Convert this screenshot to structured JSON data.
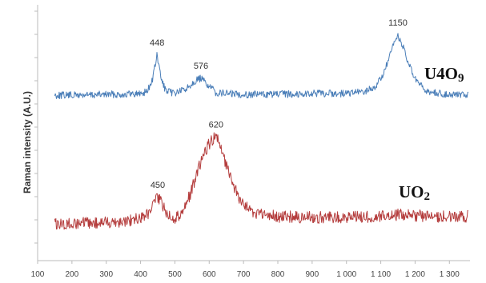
{
  "chart_data": {
    "type": "line",
    "ylabel": "Raman intensity (A.U.)",
    "xlabel": "",
    "xlim": [
      100,
      1360
    ],
    "xticks": [
      100,
      200,
      300,
      400,
      500,
      600,
      700,
      800,
      900,
      1000,
      1100,
      1200,
      1300
    ],
    "xtick_labels": [
      "100",
      "200",
      "300",
      "400",
      "500",
      "600",
      "700",
      "800",
      "900",
      "1 000",
      "1 100",
      "1 200",
      "1 300"
    ],
    "grid": false,
    "legend": "none",
    "series": [
      {
        "name": "U4O9",
        "color": "#4a7eb8",
        "x": [
          150,
          200,
          250,
          300,
          350,
          400,
          420,
          435,
          448,
          460,
          475,
          500,
          530,
          555,
          576,
          595,
          620,
          700,
          800,
          900,
          1000,
          1050,
          1080,
          1100,
          1120,
          1135,
          1150,
          1165,
          1180,
          1200,
          1230,
          1270,
          1300,
          1355
        ],
        "y": [
          0.05,
          0.05,
          0.05,
          0.06,
          0.06,
          0.07,
          0.1,
          0.25,
          0.55,
          0.25,
          0.09,
          0.08,
          0.12,
          0.22,
          0.26,
          0.18,
          0.08,
          0.06,
          0.06,
          0.07,
          0.07,
          0.09,
          0.14,
          0.25,
          0.45,
          0.65,
          0.8,
          0.65,
          0.45,
          0.25,
          0.1,
          0.07,
          0.06,
          0.05
        ]
      },
      {
        "name": "UO2",
        "color": "#b43c3c",
        "x": [
          150,
          200,
          250,
          300,
          350,
          400,
          425,
          440,
          450,
          465,
          480,
          500,
          520,
          545,
          570,
          595,
          610,
          620,
          635,
          650,
          670,
          700,
          740,
          800,
          900,
          1000,
          1100,
          1150,
          1200,
          1250,
          1300,
          1355
        ],
        "y": [
          0.1,
          0.1,
          0.11,
          0.12,
          0.13,
          0.16,
          0.22,
          0.32,
          0.38,
          0.3,
          0.2,
          0.16,
          0.22,
          0.42,
          0.7,
          0.92,
          1.0,
          1.02,
          0.92,
          0.72,
          0.5,
          0.3,
          0.2,
          0.18,
          0.17,
          0.17,
          0.18,
          0.2,
          0.19,
          0.18,
          0.18,
          0.18
        ]
      }
    ],
    "annotations": [
      {
        "text": "448",
        "x": 448,
        "series": 0
      },
      {
        "text": "576",
        "x": 576,
        "series": 0
      },
      {
        "text": "1150",
        "x": 1150,
        "series": 0
      },
      {
        "text": "450",
        "x": 450,
        "series": 1
      },
      {
        "text": "620",
        "x": 620,
        "series": 1
      }
    ],
    "series_labels": [
      "U4O9",
      "UO2"
    ]
  }
}
